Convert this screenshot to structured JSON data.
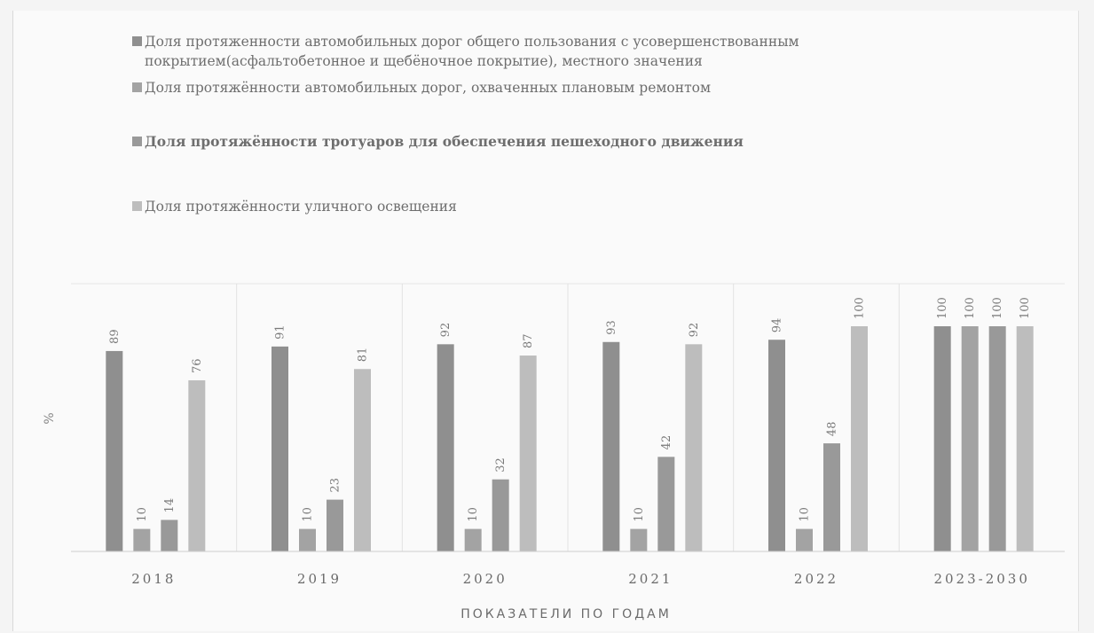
{
  "chart_data": {
    "type": "bar",
    "title": "",
    "xlabel": "ПОКАЗАТЕЛИ ПО ГОДАМ",
    "ylabel": "%",
    "ylim": [
      0,
      100
    ],
    "legend_position": "top",
    "categories": [
      "2018",
      "2019",
      "2020",
      "2021",
      "2022",
      "2023-2030"
    ],
    "series": [
      {
        "name": "Доля протяженности автомобильных дорог общего пользования с усовершенствованным покрытием(асфальтобетонное и щебёночное покрытие), местного значения",
        "values": [
          89,
          91,
          92,
          93,
          94,
          100
        ],
        "color": "#8f8f8f"
      },
      {
        "name": "Доля протяжённости автомобильных дорог, охваченных плановым ремонтом",
        "values": [
          10,
          10,
          10,
          10,
          10,
          100
        ],
        "color": "#a3a3a3"
      },
      {
        "name": "Доля протяжённости тротуаров для обеспечения пешеходного движения",
        "values": [
          14,
          23,
          32,
          42,
          48,
          100
        ],
        "color": "#999999"
      },
      {
        "name": "Доля протяжённости уличного освещения",
        "values": [
          76,
          81,
          87,
          92,
          100,
          100
        ],
        "color": "#bdbdbd"
      }
    ]
  }
}
